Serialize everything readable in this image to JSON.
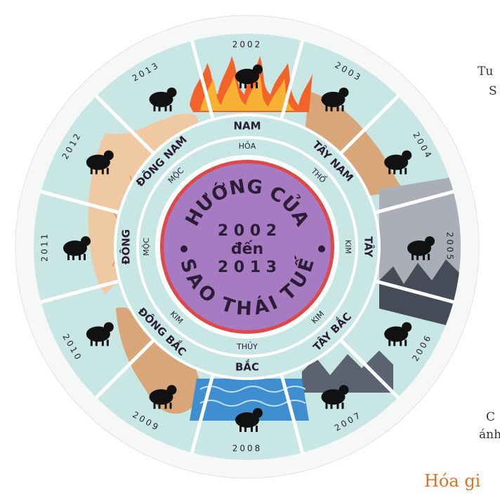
{
  "center": {
    "title_top": "HƯỚNG CỦA",
    "title_bottom": "SAO THÁI TUẾ",
    "line1": "2 0 0 2",
    "line2": "đến",
    "line3": "2 0 1 3"
  },
  "directions": [
    {
      "name": "NAM",
      "element": "HỎA"
    },
    {
      "name": "TÂY NAM",
      "element": "THỔ"
    },
    {
      "name": "TÂY",
      "element": "KIM"
    },
    {
      "name": "TÂY BẮC",
      "element": "KIM"
    },
    {
      "name": "BẮC",
      "element": "THỦY"
    },
    {
      "name": "ĐÔNG BẮC",
      "element": "KIM"
    },
    {
      "name": "ĐÔNG",
      "element": "MỘC"
    },
    {
      "name": "ĐÔNG NAM",
      "element": "MỘC"
    }
  ],
  "years": [
    {
      "year": "2002",
      "animal": "horse-icon"
    },
    {
      "year": "2003",
      "animal": "goat-icon"
    },
    {
      "year": "2004",
      "animal": "monkey-icon"
    },
    {
      "year": "2005",
      "animal": "rooster-icon"
    },
    {
      "year": "2006",
      "animal": "dog-icon"
    },
    {
      "year": "2007",
      "animal": "pig-icon"
    },
    {
      "year": "2008",
      "animal": "rat-icon"
    },
    {
      "year": "2009",
      "animal": "ox-icon"
    },
    {
      "year": "2010",
      "animal": "tiger-icon"
    },
    {
      "year": "2011",
      "animal": "rabbit-icon"
    },
    {
      "year": "2012",
      "animal": "dragon-icon"
    },
    {
      "year": "2013",
      "animal": "snake-icon"
    }
  ],
  "side_text": {
    "line1": "Tu",
    "line2": "S",
    "line3": "ánh",
    "line4": "C"
  },
  "bottom_heading": "Hóa gi",
  "colors": {
    "ring": "#c7e6e4",
    "center": "#a77bc2",
    "center_rim": "#e04848",
    "text_dark": "#2a1d35",
    "heading": "#e2711e"
  }
}
